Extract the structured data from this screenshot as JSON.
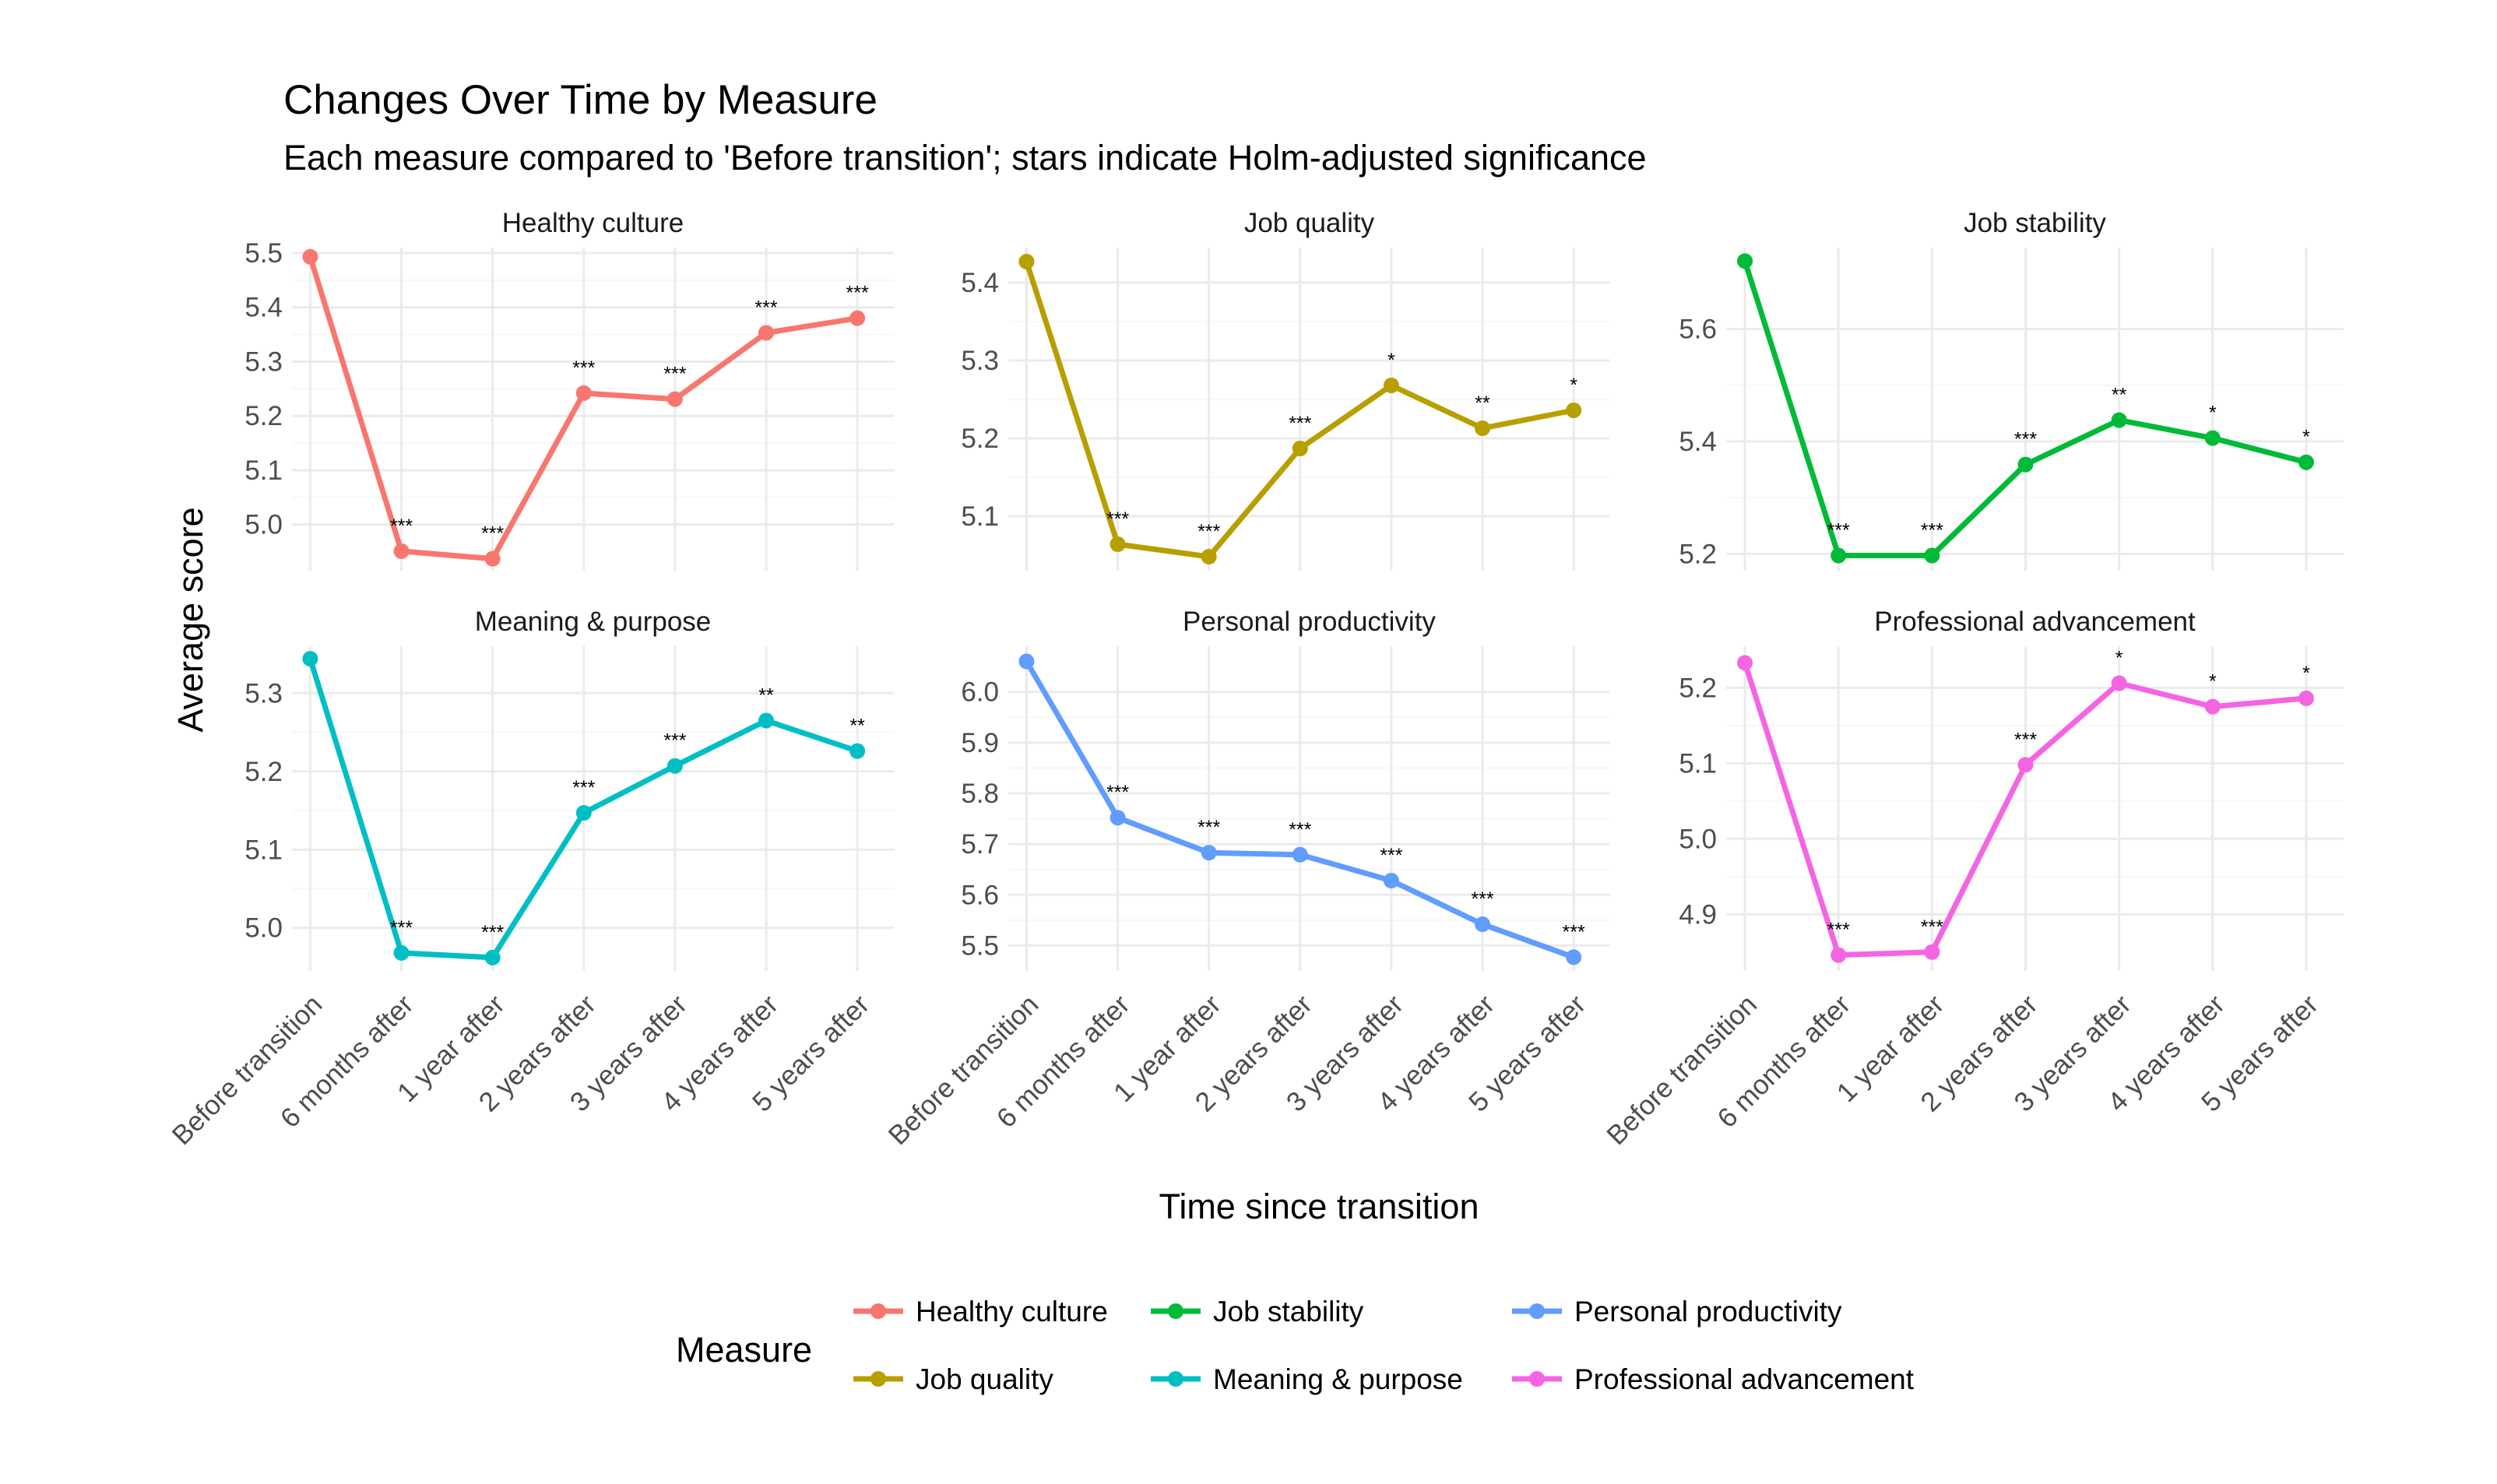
{
  "chart_data": {
    "type": "line",
    "title": "Changes Over Time by Measure",
    "subtitle": "Each measure compared to 'Before transition'; stars indicate Holm-adjusted significance",
    "xlabel": "Time since transition",
    "ylabel": "Average score",
    "categories": [
      "Before transition",
      "6 months after",
      "1 year after",
      "2 years after",
      "3 years after",
      "4 years after",
      "5 years after"
    ],
    "legend": {
      "title": "Measure",
      "position": "bottom",
      "entries": [
        "Healthy culture",
        "Job quality",
        "Job stability",
        "Meaning & purpose",
        "Personal productivity",
        "Professional advancement"
      ]
    },
    "panels": [
      {
        "name": "Healthy culture",
        "color": "#F8766D",
        "values": [
          5.493,
          4.951,
          4.937,
          5.242,
          5.231,
          5.353,
          5.38
        ],
        "stars": [
          "",
          "***",
          "***",
          "***",
          "***",
          "***",
          "***"
        ],
        "ylim": [
          4.915,
          5.51
        ],
        "yticks": [
          "5.0",
          "5.1",
          "5.2",
          "5.3",
          "5.4",
          "5.5"
        ]
      },
      {
        "name": "Job quality",
        "color": "#B79F00",
        "values": [
          5.427,
          5.064,
          5.048,
          5.187,
          5.268,
          5.213,
          5.236
        ],
        "stars": [
          "",
          "***",
          "***",
          "***",
          "*",
          "**",
          "*"
        ],
        "ylim": [
          5.03,
          5.445
        ],
        "yticks": [
          "5.1",
          "5.2",
          "5.3",
          "5.4"
        ]
      },
      {
        "name": "Job stability",
        "color": "#00BA38",
        "values": [
          5.721,
          5.197,
          5.197,
          5.359,
          5.438,
          5.406,
          5.363
        ],
        "stars": [
          "",
          "***",
          "***",
          "***",
          "**",
          "*",
          "*"
        ],
        "ylim": [
          5.17,
          5.745
        ],
        "yticks": [
          "5.2",
          "5.4",
          "5.6"
        ]
      },
      {
        "name": "Meaning & purpose",
        "color": "#00BFC4",
        "values": [
          5.344,
          4.968,
          4.962,
          5.147,
          5.207,
          5.265,
          5.226
        ],
        "stars": [
          "",
          "***",
          "***",
          "***",
          "***",
          "**",
          "**"
        ],
        "ylim": [
          4.945,
          5.36
        ],
        "yticks": [
          "5.0",
          "5.1",
          "5.2",
          "5.3"
        ]
      },
      {
        "name": "Personal productivity",
        "color": "#619CFF",
        "values": [
          6.06,
          5.752,
          5.683,
          5.679,
          5.628,
          5.542,
          5.477
        ],
        "stars": [
          "",
          "***",
          "***",
          "***",
          "***",
          "***",
          "***"
        ],
        "ylim": [
          5.45,
          6.09
        ],
        "yticks": [
          "5.5",
          "5.6",
          "5.7",
          "5.8",
          "5.9",
          "6.0"
        ]
      },
      {
        "name": "Professional advancement",
        "color": "#F564E3",
        "values": [
          5.233,
          4.846,
          4.85,
          5.098,
          5.206,
          5.175,
          5.186
        ],
        "stars": [
          "",
          "***",
          "***",
          "***",
          "*",
          "*",
          "*"
        ],
        "ylim": [
          4.825,
          5.255
        ],
        "yticks": [
          "4.9",
          "5.0",
          "5.1",
          "5.2"
        ]
      }
    ]
  }
}
